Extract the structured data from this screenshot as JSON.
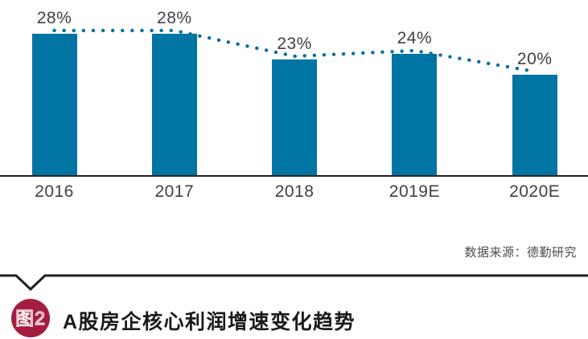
{
  "chart_data": {
    "type": "bar",
    "title": "A股房企核心利润增速变化趋势",
    "categories": [
      "2016",
      "2017",
      "2018",
      "2019E",
      "2020E"
    ],
    "values": [
      28,
      28,
      23,
      24,
      20
    ],
    "data_labels": [
      "28%",
      "28%",
      "23%",
      "24%",
      "20%"
    ],
    "unit": "%",
    "ylim": [
      0,
      30
    ],
    "grid": false,
    "legend": "none",
    "bar_color": "#0074A3",
    "trend_color": "#0A6FA0",
    "axis_color": "#231F20",
    "label_color": "#414042",
    "trendline": {
      "style": "dotted",
      "follows_values": [
        28,
        28,
        23,
        24,
        20
      ]
    },
    "source": "数据来源：德勤研究"
  },
  "figure": {
    "badge_label": "图2",
    "badge_color": "#A41D3F",
    "title": "A股房企核心利润增速变化趋势"
  }
}
